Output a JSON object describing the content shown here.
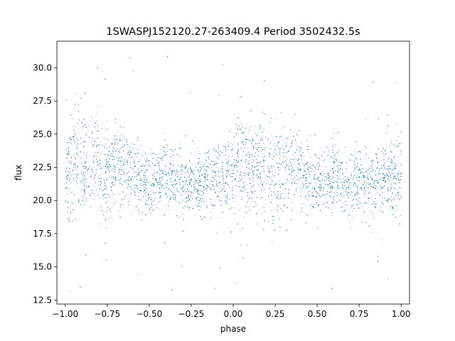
{
  "chart_data": {
    "type": "scatter",
    "title": "1SWASPJ152120.27-263409.4 Period 3502432.5s",
    "xlabel": "phase",
    "ylabel": "flux",
    "xlim": [
      -1.05,
      1.05
    ],
    "ylim": [
      12.2,
      32.0
    ],
    "xticks": [
      -1.0,
      -0.75,
      -0.5,
      -0.25,
      0.0,
      0.25,
      0.5,
      0.75,
      1.0
    ],
    "xtick_labels": [
      "−1.00",
      "−0.75",
      "−0.50",
      "−0.25",
      "0.00",
      "0.25",
      "0.50",
      "0.75",
      "1.00"
    ],
    "yticks": [
      12.5,
      15.0,
      17.5,
      20.0,
      22.5,
      25.0,
      27.5,
      30.0
    ],
    "ytick_labels": [
      "12.5",
      "15.0",
      "17.5",
      "20.0",
      "22.5",
      "25.0",
      "27.5",
      "30.0"
    ],
    "grid": false,
    "legend": "none",
    "point_color": "#1f77b4",
    "series": [
      {
        "phase": [
          -1.0,
          -0.95,
          -0.9,
          -0.85,
          -0.8,
          -0.75,
          -0.7,
          -0.65,
          -0.6,
          -0.55,
          -0.5,
          -0.45,
          -0.4,
          -0.35,
          -0.3,
          -0.25,
          -0.2,
          -0.15,
          -0.1,
          -0.05,
          0.0,
          0.05,
          0.1,
          0.15,
          0.2,
          0.25,
          0.3,
          0.35,
          0.4,
          0.45,
          0.5,
          0.55,
          0.6,
          0.65,
          0.7,
          0.75,
          0.8,
          0.85,
          0.9,
          0.95,
          1.0
        ],
        "flux_median": [
          22.0,
          23.5,
          22.3,
          23.2,
          22.5,
          22.0,
          22.8,
          22.6,
          22.3,
          21.5,
          21.0,
          21.5,
          21.8,
          21.5,
          21.0,
          21.6,
          21.5,
          21.8,
          22.0,
          21.8,
          22.0,
          23.5,
          22.3,
          23.2,
          22.5,
          22.0,
          22.8,
          22.6,
          22.3,
          21.5,
          21.0,
          21.5,
          21.8,
          21.5,
          21.0,
          21.6,
          21.5,
          21.8,
          22.0,
          21.8,
          22.0
        ],
        "flux_low": [
          18.0,
          17.5,
          19.5,
          19.0,
          19.0,
          17.0,
          19.0,
          19.5,
          19.5,
          19.0,
          19.0,
          19.5,
          19.5,
          19.0,
          18.5,
          19.0,
          19.0,
          19.0,
          19.5,
          19.0,
          18.0,
          17.5,
          19.5,
          19.0,
          19.0,
          17.0,
          19.0,
          19.5,
          19.5,
          19.0,
          19.0,
          19.5,
          19.5,
          19.0,
          18.5,
          19.0,
          19.0,
          19.0,
          19.5,
          19.0,
          18.0
        ],
        "flux_high": [
          25.0,
          27.2,
          26.5,
          26.0,
          27.0,
          25.0,
          25.8,
          25.5,
          25.0,
          24.0,
          23.5,
          24.0,
          24.5,
          24.0,
          23.5,
          24.0,
          24.0,
          24.0,
          24.5,
          24.5,
          25.0,
          27.2,
          26.5,
          26.0,
          27.0,
          25.0,
          25.8,
          25.5,
          25.0,
          24.0,
          23.5,
          24.0,
          24.5,
          24.0,
          23.5,
          24.0,
          24.0,
          24.0,
          24.5,
          24.5,
          25.0
        ]
      }
    ]
  }
}
